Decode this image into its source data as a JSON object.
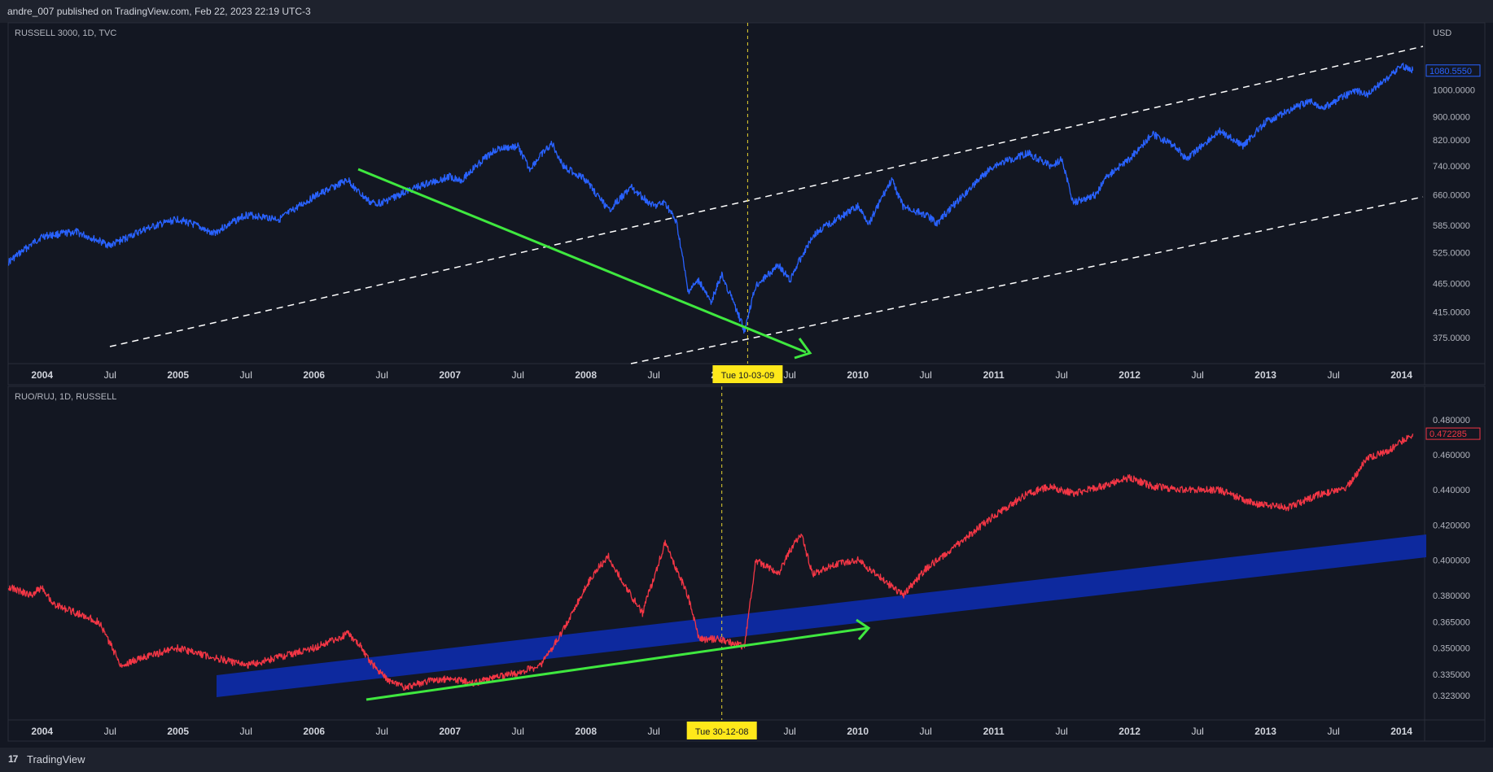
{
  "header": {
    "publish_text": "andre_007 published on TradingView.com, Feb 22, 2023 22:19 UTC-3"
  },
  "footer": {
    "brand": "TradingView",
    "logo_glyph": "17"
  },
  "colors": {
    "background": "#131722",
    "panel_border": "#2a2e39",
    "russell_line": "#2962ff",
    "ratio_line": "#f23645",
    "trend_arrow": "#3fe83f",
    "channel_line": "#ffffff",
    "band_fill": "#0d2aa5",
    "crosshair": "#e6d230",
    "date_label_bg": "#ffe81a"
  },
  "chart_data": [
    {
      "type": "line",
      "title": "RUSSELL 3000, 1D, TVC",
      "currency": "USD",
      "y_scale": "log",
      "ylim": [
        355,
        1185
      ],
      "y_ticks": [
        "1000.0000",
        "900.0000",
        "820.0000",
        "740.0000",
        "660.0000",
        "585.0000",
        "525.0000",
        "465.0000",
        "415.0000",
        "375.0000"
      ],
      "x_ticks": [
        "2004",
        "Jul",
        "2005",
        "Jul",
        "2006",
        "Jul",
        "2007",
        "Jul",
        "2008",
        "Jul",
        "2009",
        "Jul",
        "2010",
        "Jul",
        "2011",
        "Jul",
        "2012",
        "Jul",
        "2013",
        "Jul",
        "2014"
      ],
      "last_value": "1080.5550",
      "crosshair_label": "Tue 10-03-09",
      "series": [
        {
          "x": [
            "2003-10",
            "2004-01",
            "2004-04",
            "2004-07",
            "2004-10",
            "2005-01",
            "2005-03",
            "2005-04",
            "2005-07",
            "2005-10",
            "2006-01",
            "2006-04",
            "2006-05",
            "2006-06",
            "2006-07",
            "2006-10",
            "2007-01",
            "2007-02",
            "2007-05",
            "2007-07",
            "2007-08",
            "2007-10",
            "2007-11",
            "2008-01",
            "2008-03",
            "2008-05",
            "2008-07",
            "2008-08",
            "2008-09",
            "2008-10",
            "2008-11",
            "2008-12",
            "2009-01",
            "2009-03",
            "2009-04",
            "2009-06",
            "2009-07",
            "2009-09",
            "2009-10",
            "2010-01",
            "2010-02",
            "2010-04",
            "2010-05",
            "2010-07",
            "2010-08",
            "2010-11",
            "2011-01",
            "2011-04",
            "2011-06",
            "2011-07",
            "2011-08",
            "2011-10",
            "2011-11",
            "2012-01",
            "2012-03",
            "2012-05",
            "2012-06",
            "2012-09",
            "2012-11",
            "2013-01",
            "2013-03",
            "2013-05",
            "2013-06",
            "2013-09",
            "2013-10",
            "2013-12",
            "2014-01",
            "2014-02"
          ],
          "values": [
            505,
            560,
            570,
            540,
            575,
            600,
            580,
            565,
            610,
            600,
            655,
            700,
            665,
            640,
            640,
            680,
            710,
            700,
            790,
            800,
            730,
            810,
            740,
            700,
            620,
            680,
            630,
            640,
            590,
            450,
            470,
            430,
            480,
            385,
            460,
            500,
            470,
            560,
            580,
            630,
            590,
            700,
            630,
            610,
            590,
            680,
            740,
            780,
            740,
            760,
            640,
            660,
            710,
            760,
            840,
            800,
            760,
            850,
            800,
            880,
            920,
            960,
            930,
            1000,
            980,
            1060,
            1100,
            1080
          ]
        }
      ]
    },
    {
      "type": "line",
      "title": "RUO/RUJ, 1D, RUSSELL",
      "ylim": [
        0.317,
        0.485
      ],
      "y_ticks": [
        "0.480000",
        "0.460000",
        "0.440000",
        "0.420000",
        "0.400000",
        "0.380000",
        "0.365000",
        "0.350000",
        "0.335000",
        "0.323000"
      ],
      "x_ticks": [
        "2004",
        "Jul",
        "2005",
        "Jul",
        "2006",
        "Jul",
        "2007",
        "Jul",
        "2008",
        "Jul",
        "2009",
        "Jul",
        "2010",
        "Jul",
        "2011",
        "Jul",
        "2012",
        "Jul",
        "2013",
        "Jul",
        "2014"
      ],
      "last_value": "0.472285",
      "crosshair_label": "Tue 30-12-08",
      "series": [
        {
          "x": [
            "2003-10",
            "2003-12",
            "2004-01",
            "2004-02",
            "2004-04",
            "2004-06",
            "2004-08",
            "2004-10",
            "2005-01",
            "2005-04",
            "2005-07",
            "2005-10",
            "2006-01",
            "2006-04",
            "2006-05",
            "2006-06",
            "2006-07",
            "2006-08",
            "2006-09",
            "2006-11",
            "2007-01",
            "2007-03",
            "2007-05",
            "2007-07",
            "2007-09",
            "2007-11",
            "2008-01",
            "2008-02",
            "2008-03",
            "2008-05",
            "2008-06",
            "2008-08",
            "2008-10",
            "2008-11",
            "2009-01",
            "2009-03",
            "2009-04",
            "2009-06",
            "2009-07",
            "2009-08",
            "2009-09",
            "2009-11",
            "2010-01",
            "2010-04",
            "2010-05",
            "2010-07",
            "2010-10",
            "2011-01",
            "2011-04",
            "2011-06",
            "2011-08",
            "2011-11",
            "2012-01",
            "2012-03",
            "2012-06",
            "2012-09",
            "2012-12",
            "2013-03",
            "2013-06",
            "2013-08",
            "2013-10",
            "2013-12",
            "2014-02"
          ],
          "values": [
            0.385,
            0.38,
            0.385,
            0.375,
            0.37,
            0.365,
            0.34,
            0.345,
            0.35,
            0.345,
            0.34,
            0.345,
            0.35,
            0.358,
            0.352,
            0.342,
            0.335,
            0.33,
            0.328,
            0.331,
            0.333,
            0.33,
            0.333,
            0.336,
            0.34,
            0.36,
            0.385,
            0.395,
            0.402,
            0.38,
            0.37,
            0.41,
            0.38,
            0.355,
            0.355,
            0.351,
            0.4,
            0.392,
            0.405,
            0.415,
            0.392,
            0.398,
            0.4,
            0.385,
            0.38,
            0.395,
            0.41,
            0.425,
            0.438,
            0.442,
            0.438,
            0.443,
            0.447,
            0.442,
            0.44,
            0.44,
            0.432,
            0.43,
            0.438,
            0.44,
            0.458,
            0.463,
            0.472
          ]
        }
      ]
    }
  ]
}
